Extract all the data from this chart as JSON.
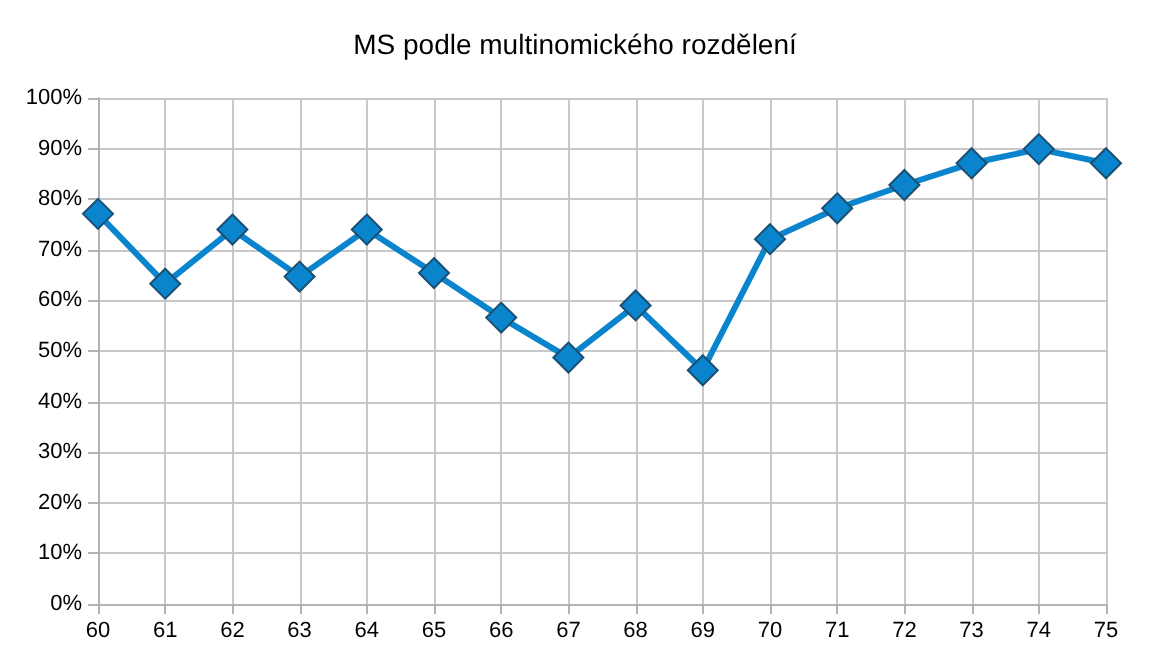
{
  "chart_data": {
    "type": "line",
    "title": "MS podle multinomického rozdělení",
    "categories": [
      "60",
      "61",
      "62",
      "63",
      "64",
      "65",
      "66",
      "67",
      "68",
      "69",
      "70",
      "71",
      "72",
      "73",
      "74",
      "75"
    ],
    "series": [
      {
        "color": "#0a84cc",
        "values": [
          77.1,
          63.3,
          74.0,
          64.7,
          74.0,
          65.4,
          56.6,
          48.7,
          59.0,
          46.2,
          72.1,
          78.2,
          82.8,
          87.1,
          89.9,
          87.1
        ]
      }
    ],
    "ylim": [
      0,
      100
    ],
    "yticks": [
      {
        "value": 0,
        "label": "0%"
      },
      {
        "value": 10,
        "label": "10%"
      },
      {
        "value": 20,
        "label": "20%"
      },
      {
        "value": 30,
        "label": "30%"
      },
      {
        "value": 40,
        "label": "40%"
      },
      {
        "value": 50,
        "label": "50%"
      },
      {
        "value": 60,
        "label": "60%"
      },
      {
        "value": 70,
        "label": "70%"
      },
      {
        "value": 80,
        "label": "80%"
      },
      {
        "value": 90,
        "label": "90%"
      },
      {
        "value": 100,
        "label": "100%"
      }
    ],
    "grid": true,
    "marker": "diamond",
    "line_style": "solid"
  }
}
